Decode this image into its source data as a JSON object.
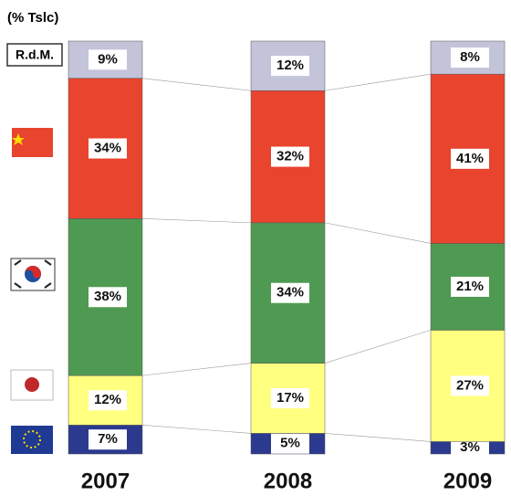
{
  "chart_data": {
    "type": "bar",
    "stacked": true,
    "y_label": "(% Tslc)",
    "categories": [
      "2007",
      "2008",
      "2009"
    ],
    "ylim": [
      0,
      100
    ],
    "series": [
      {
        "color": "#2b3a8f",
        "values": [
          7,
          5,
          3
        ],
        "value_labels": [
          "7%",
          "5%",
          "3%"
        ]
      },
      {
        "color": "#ffff80",
        "values": [
          12,
          17,
          27
        ],
        "value_labels": [
          "12%",
          "17%",
          "27%"
        ]
      },
      {
        "color": "#4f9a52",
        "values": [
          38,
          34,
          21
        ],
        "value_labels": [
          "38%",
          "34%",
          "21%"
        ]
      },
      {
        "color": "#e8442e",
        "values": [
          34,
          32,
          41
        ],
        "value_labels": [
          "34%",
          "32%",
          "41%"
        ]
      },
      {
        "name": "R.d.M.",
        "color": "#c3c3da",
        "values": [
          9,
          12,
          8
        ],
        "value_labels": [
          "9%",
          "12%",
          "8%"
        ]
      }
    ]
  }
}
